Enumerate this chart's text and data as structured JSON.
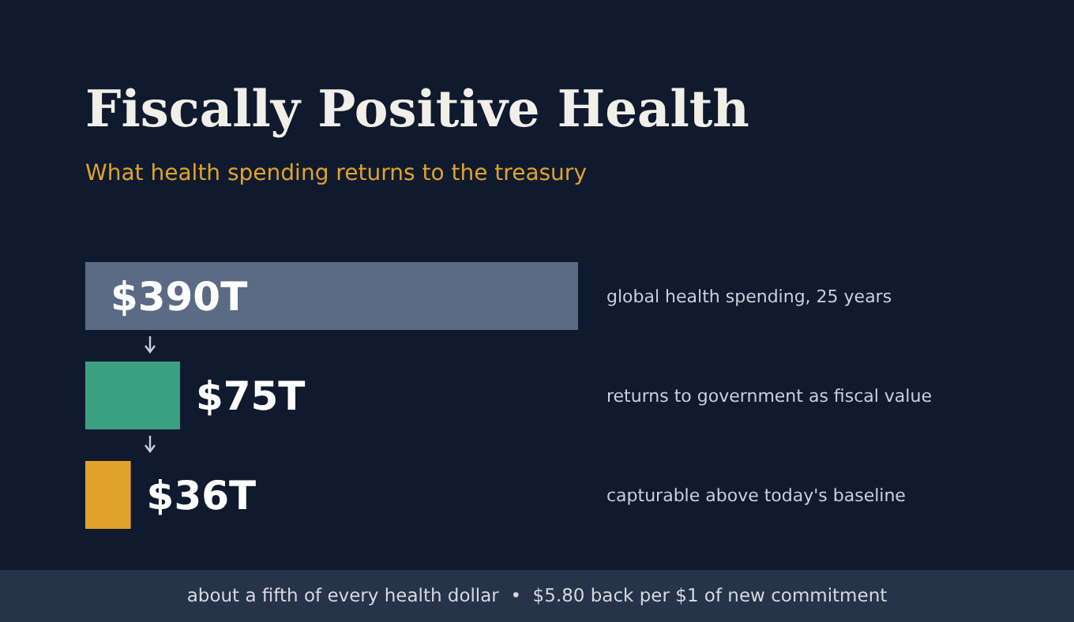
{
  "chart_data": {
    "type": "bar",
    "orientation": "horizontal",
    "relative": false,
    "title": "Fiscally Positive Health",
    "subtitle": "What health spending returns to the treasury",
    "categories": [
      "global health spending, 25 years",
      "returns to government as fiscal value",
      "capturable above today's baseline"
    ],
    "values": [
      390,
      75,
      36
    ],
    "colors": [
      "#5b6b85",
      "#3aa080",
      "#e0a22a"
    ],
    "value_labels": [
      "$390T",
      "$75T",
      "$36T"
    ],
    "annotations": [
      "about a fifth of every health dollar  •  $5.80 back per $1 of new commitment"
    ]
  }
}
